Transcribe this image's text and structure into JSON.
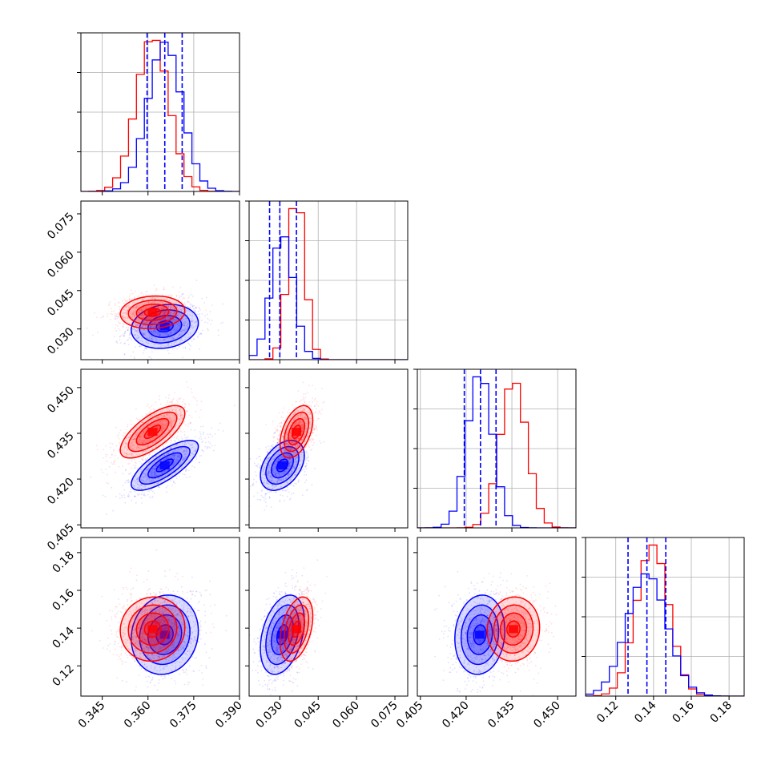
{
  "chart_data": {
    "type": "corner",
    "grid": true,
    "colors": {
      "a": "#0000ff",
      "b": "#ff0000"
    },
    "params": [
      {
        "range": [
          0.338,
          0.39
        ],
        "ticks": [
          "0.345",
          "0.360",
          "0.375",
          "0.390"
        ],
        "tickvals": [
          0.345,
          0.36,
          0.375,
          0.39
        ],
        "mean_a": 0.3655,
        "mean_b": 0.3615,
        "sd_a": 0.0055,
        "sd_b": 0.0053,
        "quantiles_a": [
          0.3597,
          0.3655,
          0.3712
        ]
      },
      {
        "range": [
          0.018,
          0.08
        ],
        "ticks": [
          "0.030",
          "0.045",
          "0.060",
          "0.075"
        ],
        "tickvals": [
          0.03,
          0.045,
          0.06,
          0.075
        ],
        "mean_a": 0.031,
        "mean_b": 0.0365,
        "sd_a": 0.0043,
        "sd_b": 0.0032,
        "quantiles_a": [
          0.026,
          0.03,
          0.0365
        ]
      },
      {
        "range": [
          0.404,
          0.456
        ],
        "ticks": [
          "0.405",
          "0.420",
          "0.435",
          "0.450"
        ],
        "tickvals": [
          0.405,
          0.42,
          0.435,
          0.45
        ],
        "mean_a": 0.4245,
        "mean_b": 0.4355,
        "sd_a": 0.0041,
        "sd_b": 0.0043,
        "quantiles_a": [
          0.4194,
          0.4247,
          0.4298
        ]
      },
      {
        "range": [
          0.104,
          0.188
        ],
        "ticks": [
          "0.12",
          "0.14",
          "0.16",
          "0.18"
        ],
        "tickvals": [
          0.12,
          0.14,
          0.16,
          0.18
        ],
        "mean_a": 0.1365,
        "mean_b": 0.1395,
        "sd_a": 0.0105,
        "sd_b": 0.0085,
        "quantiles_a": [
          0.1265,
          0.1365,
          0.1465
        ]
      }
    ],
    "correlations": {
      "1-0": {
        "a": 0.15,
        "b": 0.1
      },
      "2-0": {
        "a": 0.75,
        "b": 0.7
      },
      "2-1": {
        "a": 0.4,
        "b": 0.45
      },
      "3-0": {
        "a": 0.1,
        "b": 0.05
      },
      "3-1": {
        "a": 0.35,
        "b": 0.4
      },
      "3-2": {
        "a": 0.1,
        "b": 0.05
      }
    }
  }
}
